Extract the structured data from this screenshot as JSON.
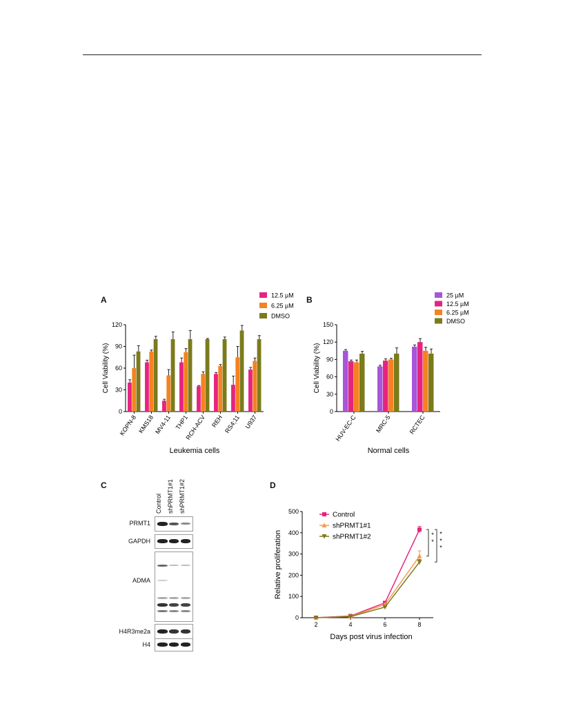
{
  "panels": {
    "A": {
      "letter": "A",
      "chart_data": {
        "type": "bar",
        "categories": [
          "KOPN-8",
          "KMS18",
          "MV4-11",
          "THP1",
          "RCH-ACV",
          "REH",
          "RS4;11",
          "U937"
        ],
        "series": [
          {
            "name": "12.5 µM",
            "color": "#e6247f",
            "values": [
              40,
              68,
              15,
              68,
              35,
              52,
              37,
              58
            ],
            "errors": [
              4,
              3,
              2,
              6,
              1,
              2,
              12,
              3
            ]
          },
          {
            "name": "6.25 µM",
            "color": "#f58220",
            "values": [
              60,
              83,
              50,
              82,
              52,
              63,
              75,
              70
            ],
            "errors": [
              18,
              2,
              8,
              5,
              3,
              2,
              15,
              4
            ]
          },
          {
            "name": "DMSO",
            "color": "#7b7b1c",
            "values": [
              83,
              100,
              100,
              100,
              100,
              100,
              112,
              100
            ],
            "errors": [
              8,
              4,
              10,
              12,
              1,
              3,
              7,
              5
            ]
          }
        ],
        "xlabel": "Leukemia cells",
        "ylabel": "Cell Viability (%)",
        "ylim": [
          0,
          120
        ],
        "yticks": [
          0,
          30,
          60,
          90,
          120
        ],
        "legend": "top-right"
      }
    },
    "B": {
      "letter": "B",
      "chart_data": {
        "type": "bar",
        "categories": [
          "HUV-EC-C",
          "MRC-5",
          "RCTEC"
        ],
        "series": [
          {
            "name": "25 µM",
            "color": "#a855d9",
            "values": [
              105,
              78,
              112
            ],
            "errors": [
              2,
              2,
              3
            ]
          },
          {
            "name": "12.5 µM",
            "color": "#e6247f",
            "values": [
              87,
              88,
              120
            ],
            "errors": [
              2,
              3,
              6
            ]
          },
          {
            "name": "6.25 µM",
            "color": "#f58220",
            "values": [
              85,
              90,
              105
            ],
            "errors": [
              4,
              2,
              6
            ]
          },
          {
            "name": "DMSO",
            "color": "#7b7b1c",
            "values": [
              100,
              100,
              100
            ],
            "errors": [
              4,
              10,
              8
            ]
          }
        ],
        "xlabel": "Normal cells",
        "ylabel": "Cell Viability (%)",
        "ylim": [
          0,
          150
        ],
        "yticks": [
          0,
          30,
          60,
          90,
          120,
          150
        ],
        "legend": "top-right"
      }
    },
    "C": {
      "letter": "C",
      "lanes": [
        "Control",
        "shPRMT1#1",
        "shPRMT1#2"
      ],
      "blots": [
        "PRMT1",
        "GAPDH",
        "ADMA",
        "H4R3me2a",
        "H4"
      ]
    },
    "D": {
      "letter": "D",
      "chart_data": {
        "type": "line",
        "x": [
          2,
          4,
          6,
          8
        ],
        "series": [
          {
            "name": "Control",
            "color": "#e6247f",
            "marker": "square",
            "values": [
              0,
              8,
              70,
              415
            ],
            "errors": [
              2,
              3,
              5,
              15
            ]
          },
          {
            "name": "shPRMT1#1",
            "color": "#f59a4a",
            "marker": "triangle-up",
            "values": [
              0,
              6,
              62,
              290
            ],
            "errors": [
              2,
              3,
              5,
              25
            ]
          },
          {
            "name": "shPRMT1#2",
            "color": "#7b7b1c",
            "marker": "triangle-down",
            "values": [
              0,
              5,
              50,
              262
            ],
            "errors": [
              2,
              3,
              5,
              12
            ]
          }
        ],
        "xlabel": "Days post virus infection",
        "ylabel": "Relative proliferation",
        "ylim": [
          0,
          500
        ],
        "yticks": [
          0,
          100,
          200,
          300,
          400,
          500
        ],
        "xticks": [
          2,
          4,
          6,
          8
        ],
        "legend": "top-left",
        "significance": [
          "* *",
          "* * *"
        ]
      }
    }
  }
}
